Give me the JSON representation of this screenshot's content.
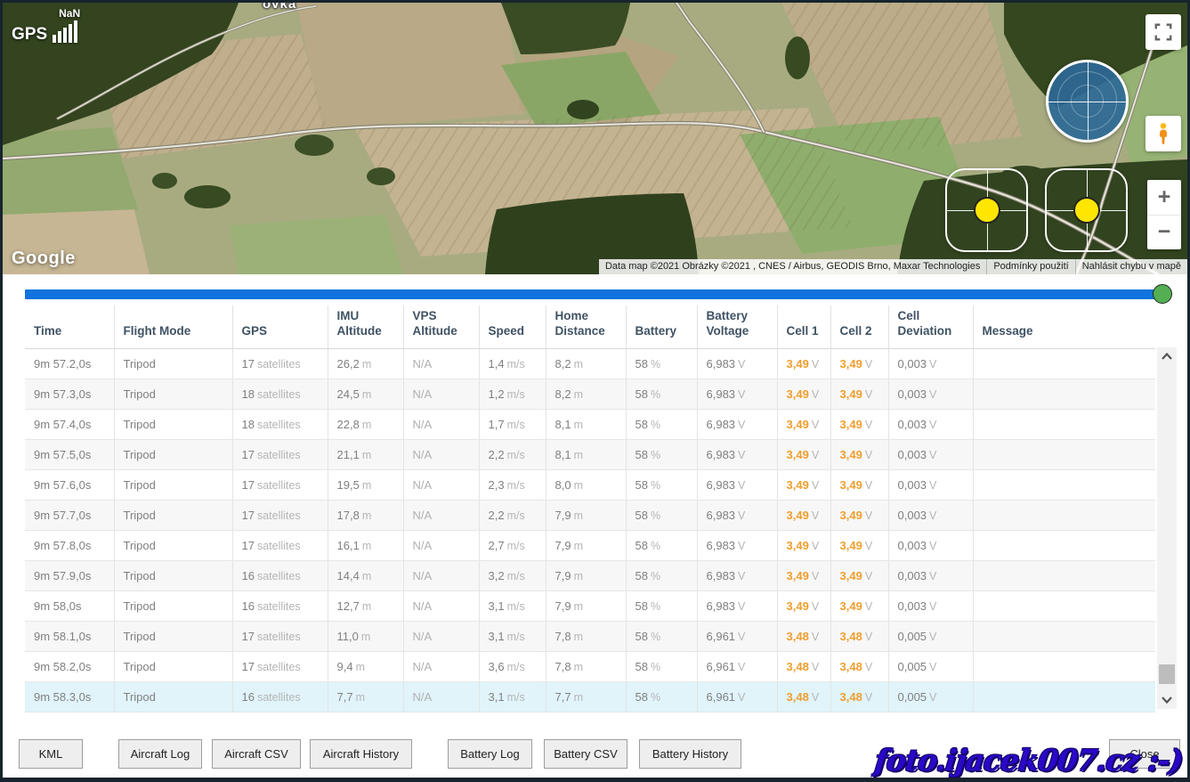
{
  "map": {
    "gps_label": "GPS",
    "gps_value": "NaN",
    "place_label": "ovka",
    "google_logo": "Google",
    "attribution": "Data map ©2021 Obrázky ©2021 , CNES / Airbus, GEODIS Brno, Maxar Technologies",
    "terms_link": "Podmínky použití",
    "report_link": "Nahlásit chybu v mapě",
    "zoom_in": "+",
    "zoom_out": "−"
  },
  "slider": {
    "progress_percent": 100,
    "track_color": "#1173dd",
    "handle_color": "#54ae54"
  },
  "table": {
    "headers": [
      "Time",
      "Flight Mode",
      "GPS",
      "IMU Altitude",
      "VPS Altitude",
      "Speed",
      "Home Distance",
      "Battery",
      "Battery Voltage",
      "Cell 1",
      "Cell 2",
      "Cell Deviation",
      "Message"
    ],
    "selected_row_index": 11,
    "rows": [
      [
        [
          "9m 57.2,0s",
          ""
        ],
        [
          "Tripod",
          ""
        ],
        [
          "17",
          "satellites"
        ],
        [
          "26,2",
          "m"
        ],
        [
          "N/A",
          ""
        ],
        [
          "1,4",
          "m/s"
        ],
        [
          "8,2",
          "m"
        ],
        [
          "58",
          "%"
        ],
        [
          "6,983",
          "V"
        ],
        [
          "3,49",
          "V"
        ],
        [
          "3,49",
          "V"
        ],
        [
          "0,003",
          "V"
        ],
        [
          "",
          ""
        ]
      ],
      [
        [
          "9m 57.3,0s",
          ""
        ],
        [
          "Tripod",
          ""
        ],
        [
          "18",
          "satellites"
        ],
        [
          "24,5",
          "m"
        ],
        [
          "N/A",
          ""
        ],
        [
          "1,2",
          "m/s"
        ],
        [
          "8,2",
          "m"
        ],
        [
          "58",
          "%"
        ],
        [
          "6,983",
          "V"
        ],
        [
          "3,49",
          "V"
        ],
        [
          "3,49",
          "V"
        ],
        [
          "0,003",
          "V"
        ],
        [
          "",
          ""
        ]
      ],
      [
        [
          "9m 57.4,0s",
          ""
        ],
        [
          "Tripod",
          ""
        ],
        [
          "18",
          "satellites"
        ],
        [
          "22,8",
          "m"
        ],
        [
          "N/A",
          ""
        ],
        [
          "1,7",
          "m/s"
        ],
        [
          "8,1",
          "m"
        ],
        [
          "58",
          "%"
        ],
        [
          "6,983",
          "V"
        ],
        [
          "3,49",
          "V"
        ],
        [
          "3,49",
          "V"
        ],
        [
          "0,003",
          "V"
        ],
        [
          "",
          ""
        ]
      ],
      [
        [
          "9m 57.5,0s",
          ""
        ],
        [
          "Tripod",
          ""
        ],
        [
          "17",
          "satellites"
        ],
        [
          "21,1",
          "m"
        ],
        [
          "N/A",
          ""
        ],
        [
          "2,2",
          "m/s"
        ],
        [
          "8,1",
          "m"
        ],
        [
          "58",
          "%"
        ],
        [
          "6,983",
          "V"
        ],
        [
          "3,49",
          "V"
        ],
        [
          "3,49",
          "V"
        ],
        [
          "0,003",
          "V"
        ],
        [
          "",
          ""
        ]
      ],
      [
        [
          "9m 57.6,0s",
          ""
        ],
        [
          "Tripod",
          ""
        ],
        [
          "17",
          "satellites"
        ],
        [
          "19,5",
          "m"
        ],
        [
          "N/A",
          ""
        ],
        [
          "2,3",
          "m/s"
        ],
        [
          "8,0",
          "m"
        ],
        [
          "58",
          "%"
        ],
        [
          "6,983",
          "V"
        ],
        [
          "3,49",
          "V"
        ],
        [
          "3,49",
          "V"
        ],
        [
          "0,003",
          "V"
        ],
        [
          "",
          ""
        ]
      ],
      [
        [
          "9m 57.7,0s",
          ""
        ],
        [
          "Tripod",
          ""
        ],
        [
          "17",
          "satellites"
        ],
        [
          "17,8",
          "m"
        ],
        [
          "N/A",
          ""
        ],
        [
          "2,2",
          "m/s"
        ],
        [
          "7,9",
          "m"
        ],
        [
          "58",
          "%"
        ],
        [
          "6,983",
          "V"
        ],
        [
          "3,49",
          "V"
        ],
        [
          "3,49",
          "V"
        ],
        [
          "0,003",
          "V"
        ],
        [
          "",
          ""
        ]
      ],
      [
        [
          "9m 57.8,0s",
          ""
        ],
        [
          "Tripod",
          ""
        ],
        [
          "17",
          "satellites"
        ],
        [
          "16,1",
          "m"
        ],
        [
          "N/A",
          ""
        ],
        [
          "2,7",
          "m/s"
        ],
        [
          "7,9",
          "m"
        ],
        [
          "58",
          "%"
        ],
        [
          "6,983",
          "V"
        ],
        [
          "3,49",
          "V"
        ],
        [
          "3,49",
          "V"
        ],
        [
          "0,003",
          "V"
        ],
        [
          "",
          ""
        ]
      ],
      [
        [
          "9m 57.9,0s",
          ""
        ],
        [
          "Tripod",
          ""
        ],
        [
          "16",
          "satellites"
        ],
        [
          "14,4",
          "m"
        ],
        [
          "N/A",
          ""
        ],
        [
          "3,2",
          "m/s"
        ],
        [
          "7,9",
          "m"
        ],
        [
          "58",
          "%"
        ],
        [
          "6,983",
          "V"
        ],
        [
          "3,49",
          "V"
        ],
        [
          "3,49",
          "V"
        ],
        [
          "0,003",
          "V"
        ],
        [
          "",
          ""
        ]
      ],
      [
        [
          "9m 58,0s",
          ""
        ],
        [
          "Tripod",
          ""
        ],
        [
          "16",
          "satellites"
        ],
        [
          "12,7",
          "m"
        ],
        [
          "N/A",
          ""
        ],
        [
          "3,1",
          "m/s"
        ],
        [
          "7,9",
          "m"
        ],
        [
          "58",
          "%"
        ],
        [
          "6,983",
          "V"
        ],
        [
          "3,49",
          "V"
        ],
        [
          "3,49",
          "V"
        ],
        [
          "0,003",
          "V"
        ],
        [
          "",
          ""
        ]
      ],
      [
        [
          "9m 58.1,0s",
          ""
        ],
        [
          "Tripod",
          ""
        ],
        [
          "17",
          "satellites"
        ],
        [
          "11,0",
          "m"
        ],
        [
          "N/A",
          ""
        ],
        [
          "3,1",
          "m/s"
        ],
        [
          "7,8",
          "m"
        ],
        [
          "58",
          "%"
        ],
        [
          "6,961",
          "V"
        ],
        [
          "3,48",
          "V"
        ],
        [
          "3,48",
          "V"
        ],
        [
          "0,005",
          "V"
        ],
        [
          "",
          ""
        ]
      ],
      [
        [
          "9m 58.2,0s",
          ""
        ],
        [
          "Tripod",
          ""
        ],
        [
          "17",
          "satellites"
        ],
        [
          "9,4",
          "m"
        ],
        [
          "N/A",
          ""
        ],
        [
          "3,6",
          "m/s"
        ],
        [
          "7,8",
          "m"
        ],
        [
          "58",
          "%"
        ],
        [
          "6,961",
          "V"
        ],
        [
          "3,48",
          "V"
        ],
        [
          "3,48",
          "V"
        ],
        [
          "0,005",
          "V"
        ],
        [
          "",
          ""
        ]
      ],
      [
        [
          "9m 58.3,0s",
          ""
        ],
        [
          "Tripod",
          ""
        ],
        [
          "16",
          "satellites"
        ],
        [
          "7,7",
          "m"
        ],
        [
          "N/A",
          ""
        ],
        [
          "3,1",
          "m/s"
        ],
        [
          "7,7",
          "m"
        ],
        [
          "58",
          "%"
        ],
        [
          "6,961",
          "V"
        ],
        [
          "3,48",
          "V"
        ],
        [
          "3,48",
          "V"
        ],
        [
          "0,005",
          "V"
        ],
        [
          "",
          ""
        ]
      ]
    ],
    "cell_value_color": "#ef9e2e",
    "selected_row_color": "#e0f4fa"
  },
  "buttons": {
    "kml": "KML",
    "aircraft_log": "Aircraft Log",
    "aircraft_csv": "Aircraft CSV",
    "aircraft_history": "Aircraft History",
    "battery_log": "Battery Log",
    "battery_csv": "Battery CSV",
    "battery_history": "Battery History",
    "close": "Close"
  },
  "watermark": "foto.ijacek007.cz :-)"
}
